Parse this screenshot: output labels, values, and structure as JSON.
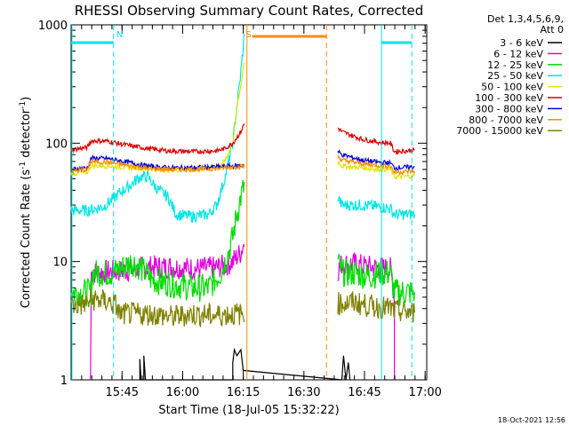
{
  "chart_data": {
    "type": "line",
    "title": "RHESSI Observing Summary Count Rates, Corrected",
    "xlabel": "Start Time (18-Jul-05 15:32:22)",
    "ylabel_main": "Corrected Count Rate (s",
    "ylabel_sup1": "-1",
    "ylabel_mid": " detector",
    "ylabel_sup2": "-1",
    "ylabel_end": ")",
    "y_scale": "log",
    "ylim": [
      1,
      1000
    ],
    "xlim_minutes": [
      0,
      88
    ],
    "y_ticks": [
      "1",
      "10",
      "100",
      "1000"
    ],
    "x_ticks": [
      {
        "label": "15:45",
        "t": 12.6
      },
      {
        "label": "16:00",
        "t": 27.6
      },
      {
        "label": "16:15",
        "t": 42.6
      },
      {
        "label": "16:30",
        "t": 57.6
      },
      {
        "label": "16:45",
        "t": 72.6
      },
      {
        "label": "17:00",
        "t": 87.6
      }
    ],
    "legend_header": [
      "Det 1,3,4,5,6,9,",
      "Att 0"
    ],
    "legend_position": "right",
    "markers": [
      {
        "label": "N",
        "t": 11.2,
        "color": "#00e5e5"
      },
      {
        "label": "S",
        "t": 43.2,
        "color": "#ff8c00"
      }
    ],
    "series": [
      {
        "name": "3 - 6 keV",
        "color": "#000000",
        "points": [
          [
            17,
            1
          ],
          [
            17,
            1.5
          ],
          [
            17.3,
            1
          ],
          [
            18,
            1
          ],
          [
            18,
            1.6
          ],
          [
            18.4,
            1
          ],
          [
            40,
            1
          ],
          [
            40,
            1.4
          ],
          [
            40.4,
            1.8
          ],
          [
            41,
            1.6
          ],
          [
            42,
            1.8
          ],
          [
            42.6,
            1.2
          ],
          [
            67,
            1
          ],
          [
            67.4,
            1.6
          ],
          [
            68,
            1
          ],
          [
            68.6,
            1.4
          ],
          [
            69,
            1
          ]
        ]
      },
      {
        "name": "6 - 12 keV",
        "color": "#e000e0",
        "points": [
          [
            4.8,
            1
          ],
          [
            5,
            8
          ],
          [
            15,
            8.5
          ],
          [
            20,
            9
          ],
          [
            25,
            9
          ],
          [
            30,
            8.7
          ],
          [
            35,
            8.8
          ],
          [
            38,
            9.2
          ],
          [
            40,
            10
          ],
          [
            42,
            12
          ],
          [
            43,
            15
          ],
          [
            66,
            8.5
          ],
          [
            67,
            9.5
          ],
          [
            70,
            9.5
          ],
          [
            74,
            9
          ],
          [
            79,
            8.7
          ],
          [
            80,
            5
          ],
          [
            80,
            1
          ]
        ]
      },
      {
        "name": "12 - 25 keV",
        "color": "#00dd00",
        "points": [
          [
            0,
            5.5
          ],
          [
            5,
            5.5
          ],
          [
            5.2,
            8
          ],
          [
            10,
            8
          ],
          [
            13,
            9
          ],
          [
            15,
            10
          ],
          [
            17,
            9
          ],
          [
            20,
            7
          ],
          [
            25,
            6.5
          ],
          [
            30,
            6
          ],
          [
            34,
            6
          ],
          [
            37,
            8
          ],
          [
            39,
            12
          ],
          [
            40,
            16
          ],
          [
            41,
            25
          ],
          [
            42,
            35
          ],
          [
            43,
            45
          ],
          [
            66,
            10
          ],
          [
            67,
            8
          ],
          [
            70,
            8
          ],
          [
            74,
            7.5
          ],
          [
            76,
            8
          ],
          [
            79,
            8
          ],
          [
            80,
            5.5
          ],
          [
            85,
            5.5
          ]
        ]
      },
      {
        "name": "25 - 50 keV",
        "color": "#00e5e5",
        "points": [
          [
            0,
            27
          ],
          [
            4,
            27
          ],
          [
            8,
            29
          ],
          [
            10,
            33
          ],
          [
            12,
            38
          ],
          [
            15,
            45
          ],
          [
            17,
            52
          ],
          [
            19,
            52
          ],
          [
            21,
            42
          ],
          [
            24,
            35
          ],
          [
            26,
            25
          ],
          [
            30,
            24
          ],
          [
            34,
            25
          ],
          [
            36,
            30
          ],
          [
            38,
            50
          ],
          [
            40,
            100
          ],
          [
            41,
            200
          ],
          [
            42,
            400
          ],
          [
            43,
            900
          ],
          [
            66,
            35
          ],
          [
            67,
            30
          ],
          [
            72,
            30
          ],
          [
            76,
            29
          ],
          [
            79,
            28
          ],
          [
            80,
            25
          ],
          [
            85,
            25
          ]
        ]
      },
      {
        "name": "50 - 100 keV",
        "color": "#e5e500",
        "points": [
          [
            0,
            55
          ],
          [
            4,
            57
          ],
          [
            5,
            65
          ],
          [
            9,
            64
          ],
          [
            14,
            62
          ],
          [
            19,
            61
          ],
          [
            24,
            59
          ],
          [
            30,
            60
          ],
          [
            36,
            62
          ],
          [
            38,
            70
          ],
          [
            40,
            100
          ],
          [
            41,
            200
          ],
          [
            42,
            300
          ],
          [
            43,
            550
          ],
          [
            66,
            70
          ],
          [
            67,
            64
          ],
          [
            72,
            62
          ],
          [
            76,
            60
          ],
          [
            79,
            60
          ],
          [
            80,
            52
          ],
          [
            85,
            53
          ]
        ]
      },
      {
        "name": "100 - 300 keV",
        "color": "#dd0000",
        "points": [
          [
            0,
            88
          ],
          [
            4,
            92
          ],
          [
            5,
            105
          ],
          [
            9,
            104
          ],
          [
            14,
            96
          ],
          [
            19,
            90
          ],
          [
            24,
            86
          ],
          [
            30,
            85
          ],
          [
            36,
            86
          ],
          [
            38,
            90
          ],
          [
            40,
            100
          ],
          [
            42,
            125
          ],
          [
            43,
            150
          ],
          [
            66,
            135
          ],
          [
            67,
            125
          ],
          [
            72,
            108
          ],
          [
            76,
            102
          ],
          [
            79,
            100
          ],
          [
            80,
            85
          ],
          [
            85,
            87
          ]
        ]
      },
      {
        "name": "300 - 800 keV",
        "color": "#0000dd",
        "points": [
          [
            0,
            60
          ],
          [
            4,
            62
          ],
          [
            5,
            75
          ],
          [
            9,
            74
          ],
          [
            14,
            69
          ],
          [
            19,
            64
          ],
          [
            24,
            62
          ],
          [
            30,
            62
          ],
          [
            36,
            63
          ],
          [
            40,
            64
          ],
          [
            43,
            65
          ],
          [
            66,
            85
          ],
          [
            67,
            80
          ],
          [
            72,
            72
          ],
          [
            76,
            69
          ],
          [
            79,
            68
          ],
          [
            80,
            62
          ],
          [
            85,
            63
          ]
        ]
      },
      {
        "name": "800 - 7000 keV",
        "color": "#ff8c00",
        "points": [
          [
            0,
            58
          ],
          [
            4,
            60
          ],
          [
            5,
            70
          ],
          [
            9,
            69
          ],
          [
            14,
            65
          ],
          [
            19,
            61
          ],
          [
            24,
            60
          ],
          [
            30,
            60
          ],
          [
            36,
            61
          ],
          [
            40,
            63
          ],
          [
            43,
            64
          ],
          [
            66,
            78
          ],
          [
            67,
            72
          ],
          [
            72,
            67
          ],
          [
            76,
            65
          ],
          [
            79,
            64
          ],
          [
            80,
            57
          ],
          [
            85,
            58
          ]
        ]
      },
      {
        "name": "7000 - 15000 keV",
        "color": "#808000",
        "points": [
          [
            0,
            4.2
          ],
          [
            4,
            4.4
          ],
          [
            5,
            4.8
          ],
          [
            9,
            4.6
          ],
          [
            11,
            4.3
          ],
          [
            12,
            3.6
          ],
          [
            20,
            3.6
          ],
          [
            25,
            3.4
          ],
          [
            30,
            3.6
          ],
          [
            35,
            3.5
          ],
          [
            40,
            3.6
          ],
          [
            43,
            3.6
          ],
          [
            66,
            4.4
          ],
          [
            70,
            4.5
          ],
          [
            74,
            4.2
          ],
          [
            79,
            4
          ],
          [
            80,
            3.8
          ],
          [
            85,
            3.7
          ]
        ]
      }
    ]
  },
  "footer": {
    "date": "18-Oct-2021 12:56"
  }
}
